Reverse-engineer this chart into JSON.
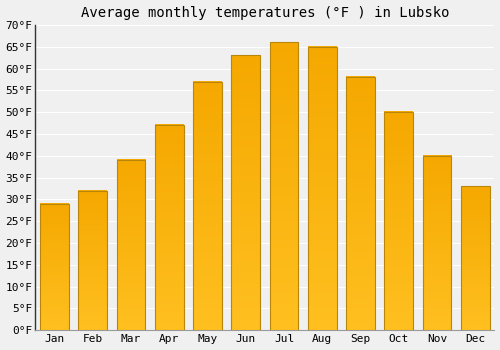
{
  "title": "Average monthly temperatures (°F ) in Lubsko",
  "months": [
    "Jan",
    "Feb",
    "Mar",
    "Apr",
    "May",
    "Jun",
    "Jul",
    "Aug",
    "Sep",
    "Oct",
    "Nov",
    "Dec"
  ],
  "values": [
    29,
    32,
    39,
    47,
    57,
    63,
    66,
    65,
    58,
    50,
    40,
    33
  ],
  "bar_color_bottom": "#FFC020",
  "bar_color_top": "#F5A800",
  "bar_edge_color": "#B8860B",
  "ylim": [
    0,
    70
  ],
  "yticks": [
    0,
    5,
    10,
    15,
    20,
    25,
    30,
    35,
    40,
    45,
    50,
    55,
    60,
    65,
    70
  ],
  "background_color": "#F0F0F0",
  "grid_color": "#FFFFFF",
  "title_fontsize": 10,
  "tick_fontsize": 8,
  "font_family": "monospace",
  "bar_width": 0.75
}
